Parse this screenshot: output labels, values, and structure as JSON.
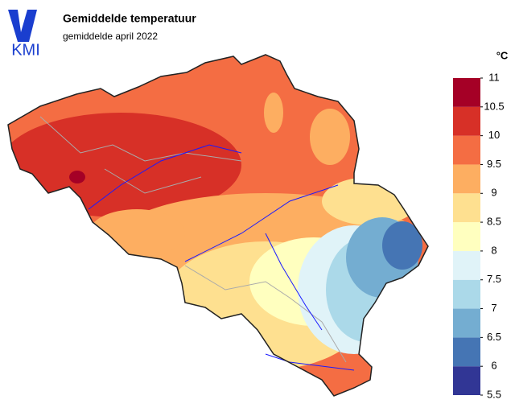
{
  "header": {
    "logo": "KMI",
    "title": "Gemiddelde temperatuur",
    "subtitle": "gemiddelde april 2022"
  },
  "legend": {
    "unit": "°C",
    "lim": [
      5.5,
      11
    ],
    "ticks": [
      5.5,
      6,
      6.5,
      7,
      7.5,
      8,
      8.5,
      9,
      9.5,
      10,
      10.5,
      11
    ],
    "colors": [
      "#313695",
      "#4575b4",
      "#74add1",
      "#abd9e9",
      "#e0f3f8",
      "#ffffbf",
      "#fee090",
      "#fdae61",
      "#f46d43",
      "#d73027",
      "#a50026"
    ]
  }
}
